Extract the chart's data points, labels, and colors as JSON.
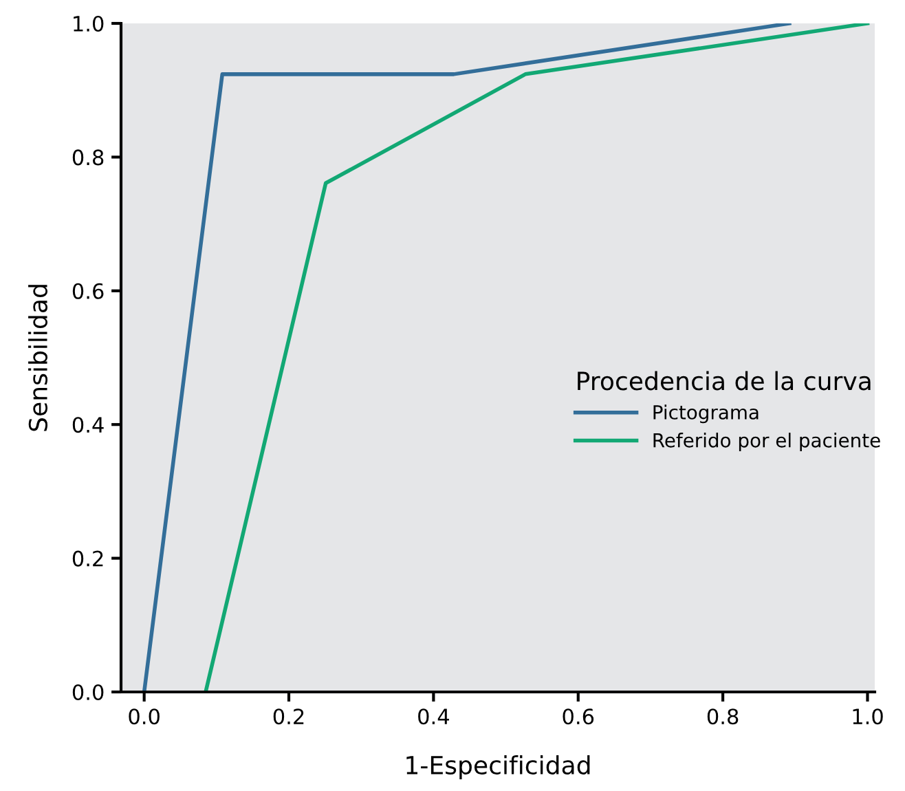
{
  "chart_data": {
    "type": "line",
    "xlabel": "1-Especificidad",
    "ylabel": "Sensibilidad",
    "legend_title": "Procedencia de la curva",
    "series": [
      {
        "name": "Pictograma",
        "color": "#336e99",
        "x": [
          0.0,
          0.108,
          0.428,
          0.892
        ],
        "values": [
          0.0,
          0.924,
          0.924,
          1.0
        ]
      },
      {
        "name": "Referido por el paciente",
        "color": "#12a874",
        "x": [
          0.085,
          0.251,
          0.527,
          1.0
        ],
        "values": [
          0.0,
          0.761,
          0.924,
          1.0
        ]
      }
    ],
    "xlim": [
      -0.032,
      1.01
    ],
    "ylim": [
      0.0,
      1.0
    ],
    "xticks": [
      {
        "value": 0.0,
        "label": "0.0"
      },
      0.2,
      0.4,
      0.6,
      0.8,
      {
        "value": 1.0,
        "label": "1.0"
      }
    ],
    "yticks": [
      {
        "value": 0.0,
        "label": "0.0"
      },
      0.2,
      0.4,
      0.6,
      0.8,
      {
        "value": 1.0,
        "label": "1.0"
      }
    ],
    "grid": false,
    "legend": "right",
    "marker": "none",
    "line_style": "solid"
  }
}
